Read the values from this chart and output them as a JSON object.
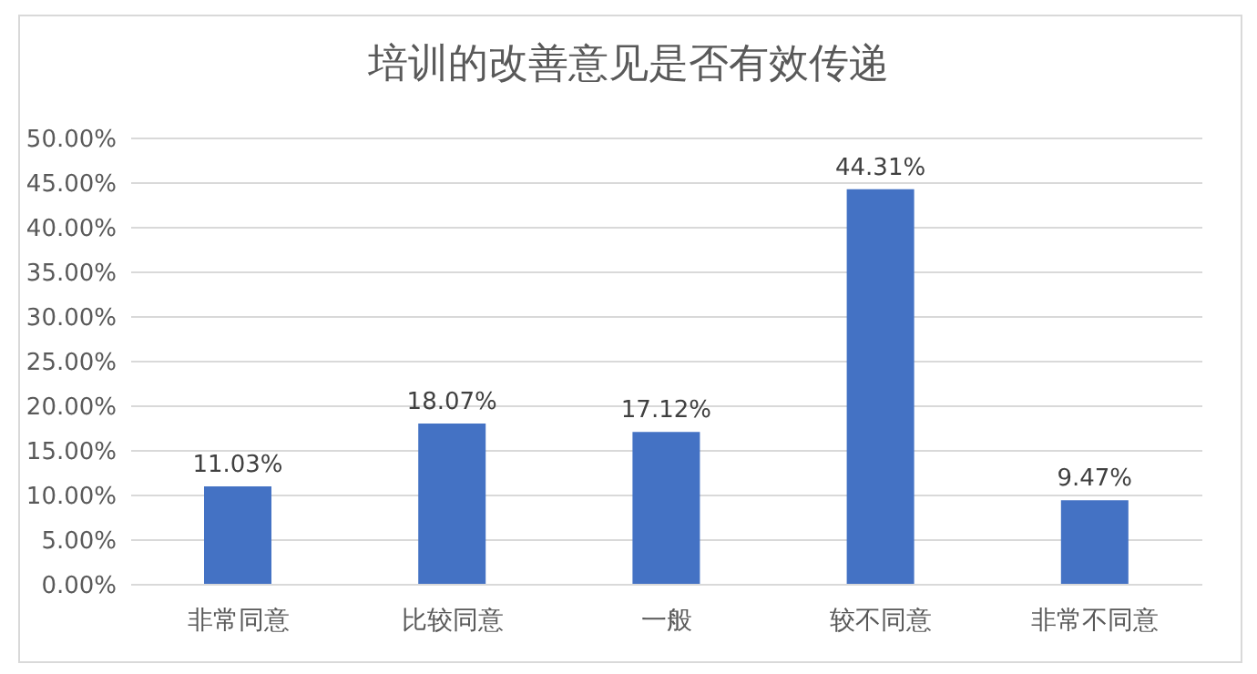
{
  "chart_data": {
    "type": "bar",
    "title": "培训的改善意见是否有效传递",
    "categories": [
      "非常同意",
      "比较同意",
      "一般",
      "较不同意",
      "非常不同意"
    ],
    "values": [
      11.03,
      18.07,
      17.12,
      44.31,
      9.47
    ],
    "value_labels": [
      "11.03%",
      "18.07%",
      "17.12%",
      "44.31%",
      "9.47%"
    ],
    "color": "#4472c4",
    "ylim": [
      0,
      50
    ],
    "yticks": [
      {
        "value": 0,
        "label": "0.00%"
      },
      {
        "value": 5,
        "label": "5.00%"
      },
      {
        "value": 10,
        "label": "10.00%"
      },
      {
        "value": 15,
        "label": "15.00%"
      },
      {
        "value": 20,
        "label": "20.00%"
      },
      {
        "value": 25,
        "label": "25.00%"
      },
      {
        "value": 30,
        "label": "30.00%"
      },
      {
        "value": 35,
        "label": "35.00%"
      },
      {
        "value": 40,
        "label": "40.00%"
      },
      {
        "value": 45,
        "label": "45.00%"
      },
      {
        "value": 50,
        "label": "50.00%"
      }
    ],
    "grid": "y"
  }
}
